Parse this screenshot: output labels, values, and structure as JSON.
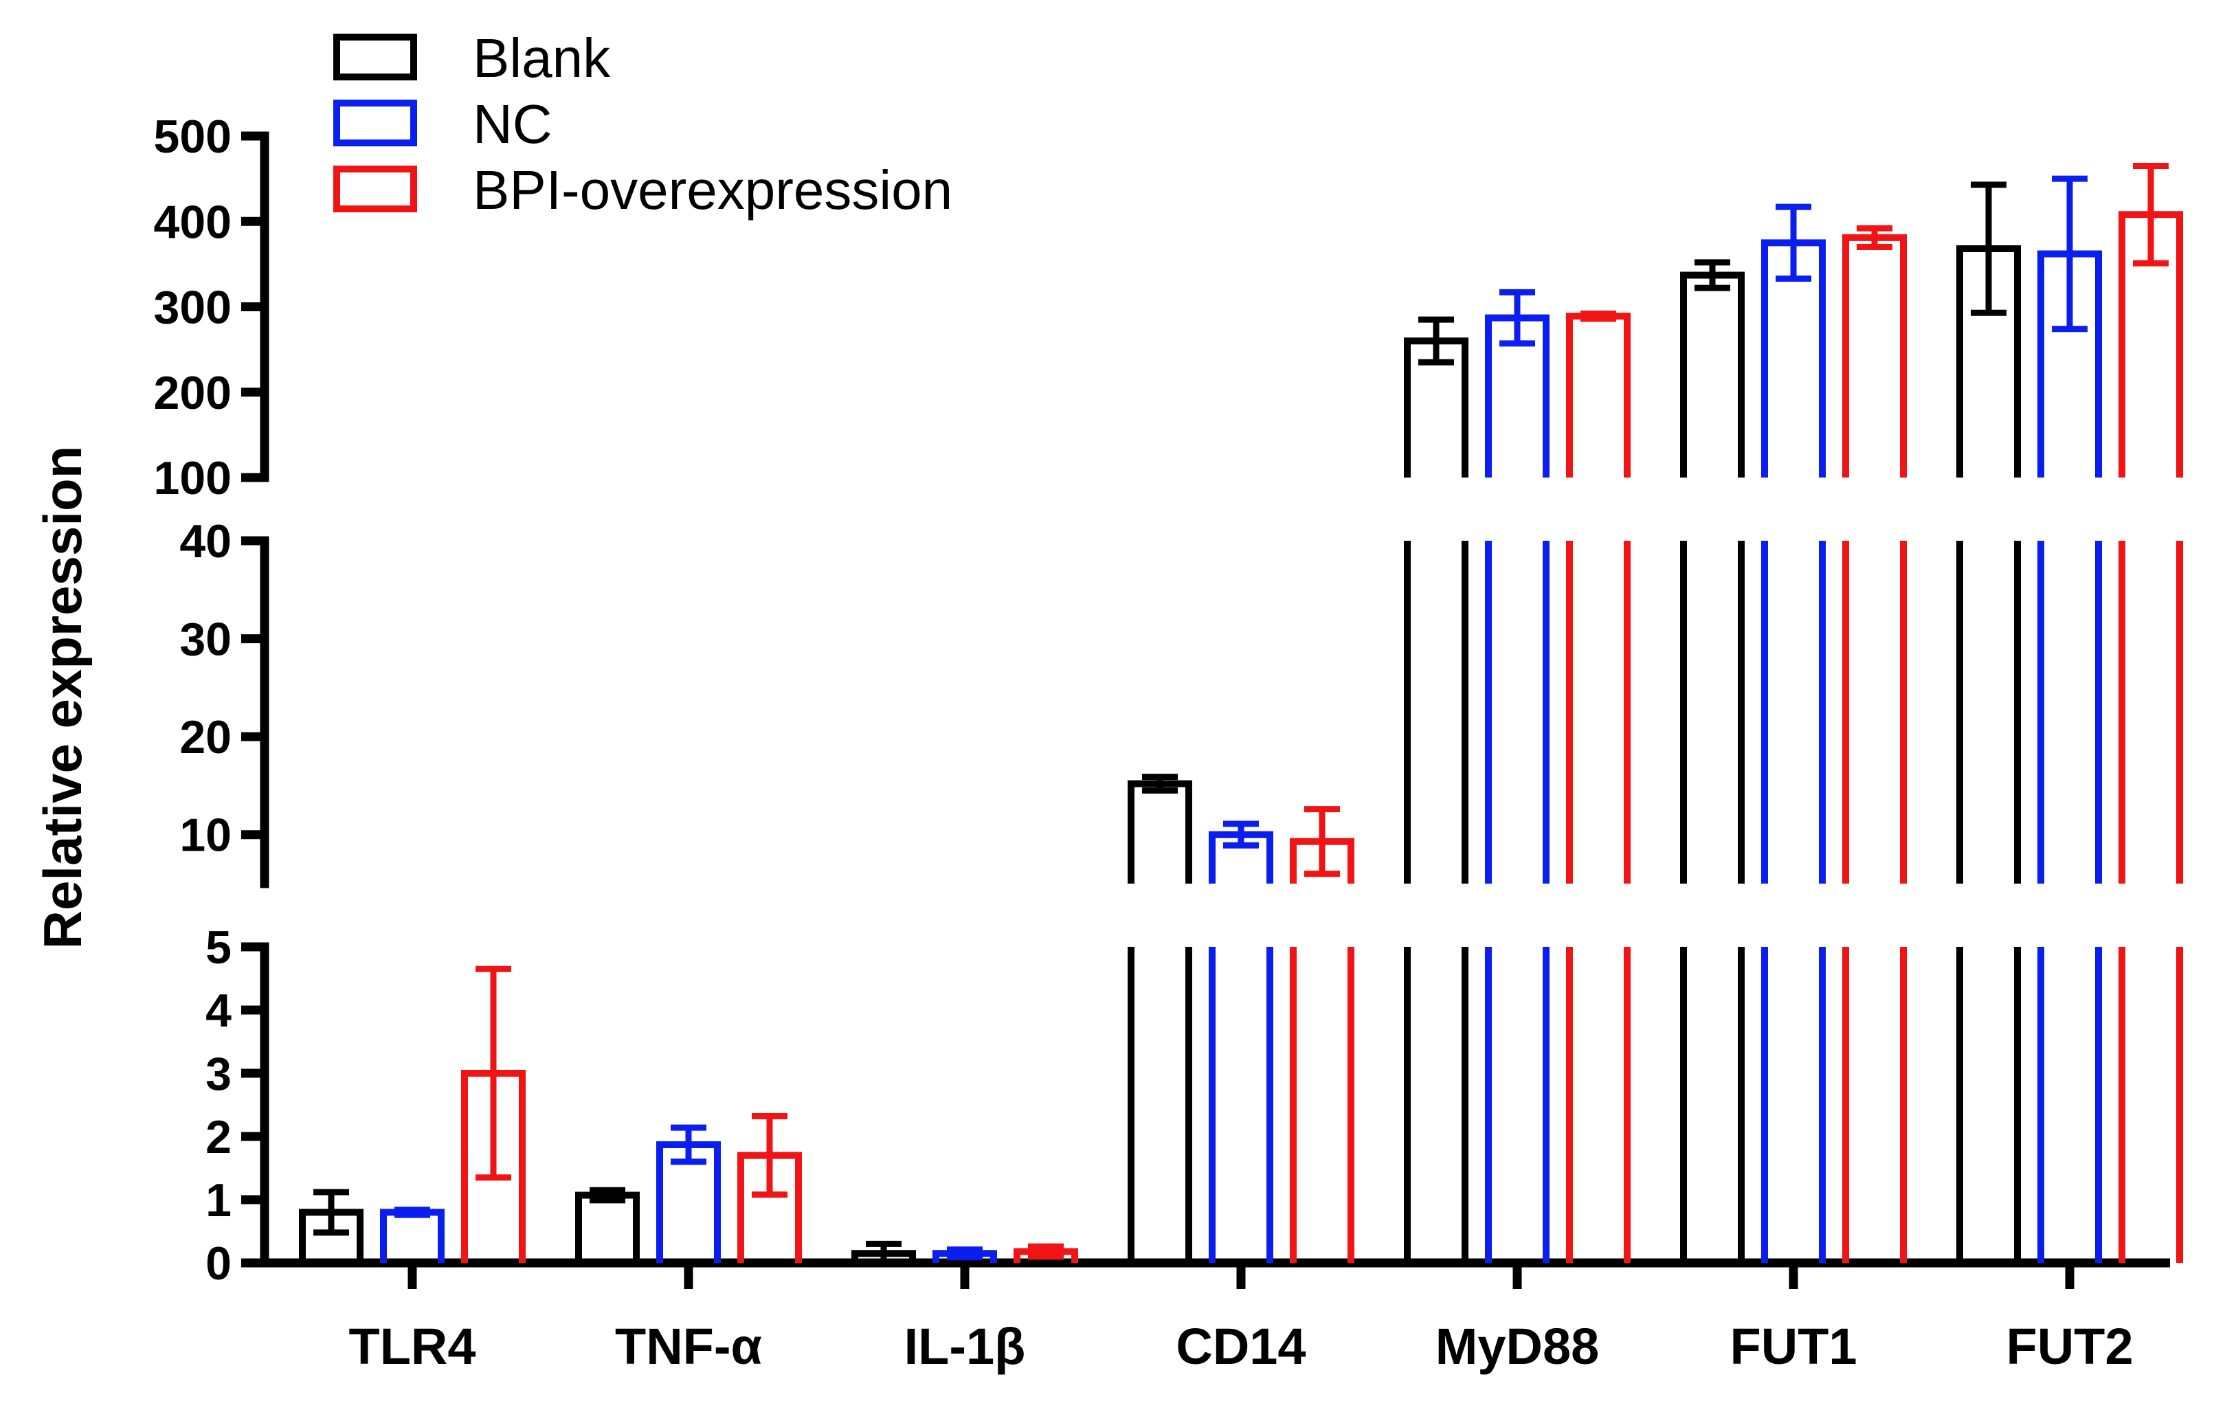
{
  "chart_data": {
    "type": "bar",
    "ylabel": "Relative expression",
    "xlabel": "",
    "categories": [
      "TLR4",
      "TNF-α",
      "IL-1β",
      "CD14",
      "MyD88",
      "FUT1",
      "FUT2"
    ],
    "series": [
      {
        "name": "Blank",
        "color": "#000000",
        "values": [
          0.8,
          1.07,
          0.15,
          15.2,
          260,
          337,
          368
        ],
        "errors": [
          0.32,
          0.08,
          0.15,
          0.7,
          25,
          15,
          75
        ]
      },
      {
        "name": "NC",
        "color": "#0a1ef0",
        "values": [
          0.8,
          1.87,
          0.15,
          10.0,
          287,
          375,
          362
        ],
        "errors": [
          0.04,
          0.27,
          0.06,
          1.1,
          30,
          42,
          88
        ]
      },
      {
        "name": "BPI-overexpression",
        "color": "#f01414",
        "values": [
          3.0,
          1.7,
          0.18,
          9.3,
          289,
          381,
          408
        ],
        "errors": [
          1.65,
          0.62,
          0.08,
          3.3,
          3,
          11,
          57
        ]
      }
    ],
    "axis_segments": [
      {
        "range": [
          0,
          5
        ],
        "ticks": [
          0,
          1,
          2,
          3,
          4,
          5
        ]
      },
      {
        "range": [
          5,
          40
        ],
        "ticks": [
          10,
          20,
          30,
          40
        ]
      },
      {
        "range": [
          100,
          500
        ],
        "ticks": [
          100,
          200,
          300,
          400,
          500
        ]
      }
    ],
    "legend": {
      "position": "top-left",
      "entries": [
        "Blank",
        "NC",
        "BPI-overexpression"
      ]
    },
    "grid": false
  }
}
